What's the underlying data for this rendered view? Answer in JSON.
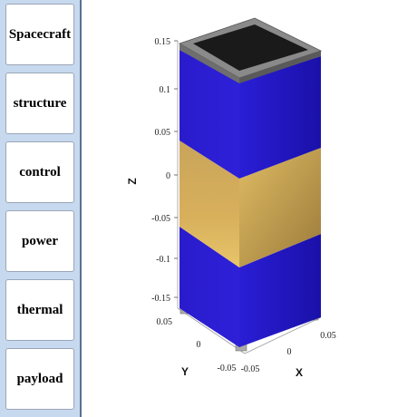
{
  "sidebar": {
    "items": [
      {
        "label": "Spacecraft"
      },
      {
        "label": "structure"
      },
      {
        "label": "control"
      },
      {
        "label": "power"
      },
      {
        "label": "thermal"
      },
      {
        "label": "payload"
      }
    ]
  },
  "plot": {
    "z_axis": {
      "label": "Z",
      "ticks": [
        "0.15",
        "0.1",
        "0.05",
        "0",
        "-0.05",
        "-0.1",
        "-0.15"
      ]
    },
    "y_axis": {
      "label": "Y",
      "ticks": [
        "0.05",
        "0",
        "-0.05"
      ]
    },
    "x_axis": {
      "label": "X",
      "ticks": [
        "0.05",
        "0",
        "-0.05"
      ]
    },
    "colors": {
      "panel_blue": "#2a1ccc",
      "panel_blue_dark": "#1a10a8",
      "band_gold": "#e0b85c",
      "band_gold_dark": "#b08a3a",
      "frame_gray": "#8a8a8a",
      "top_black": "#1a1a1a"
    }
  }
}
